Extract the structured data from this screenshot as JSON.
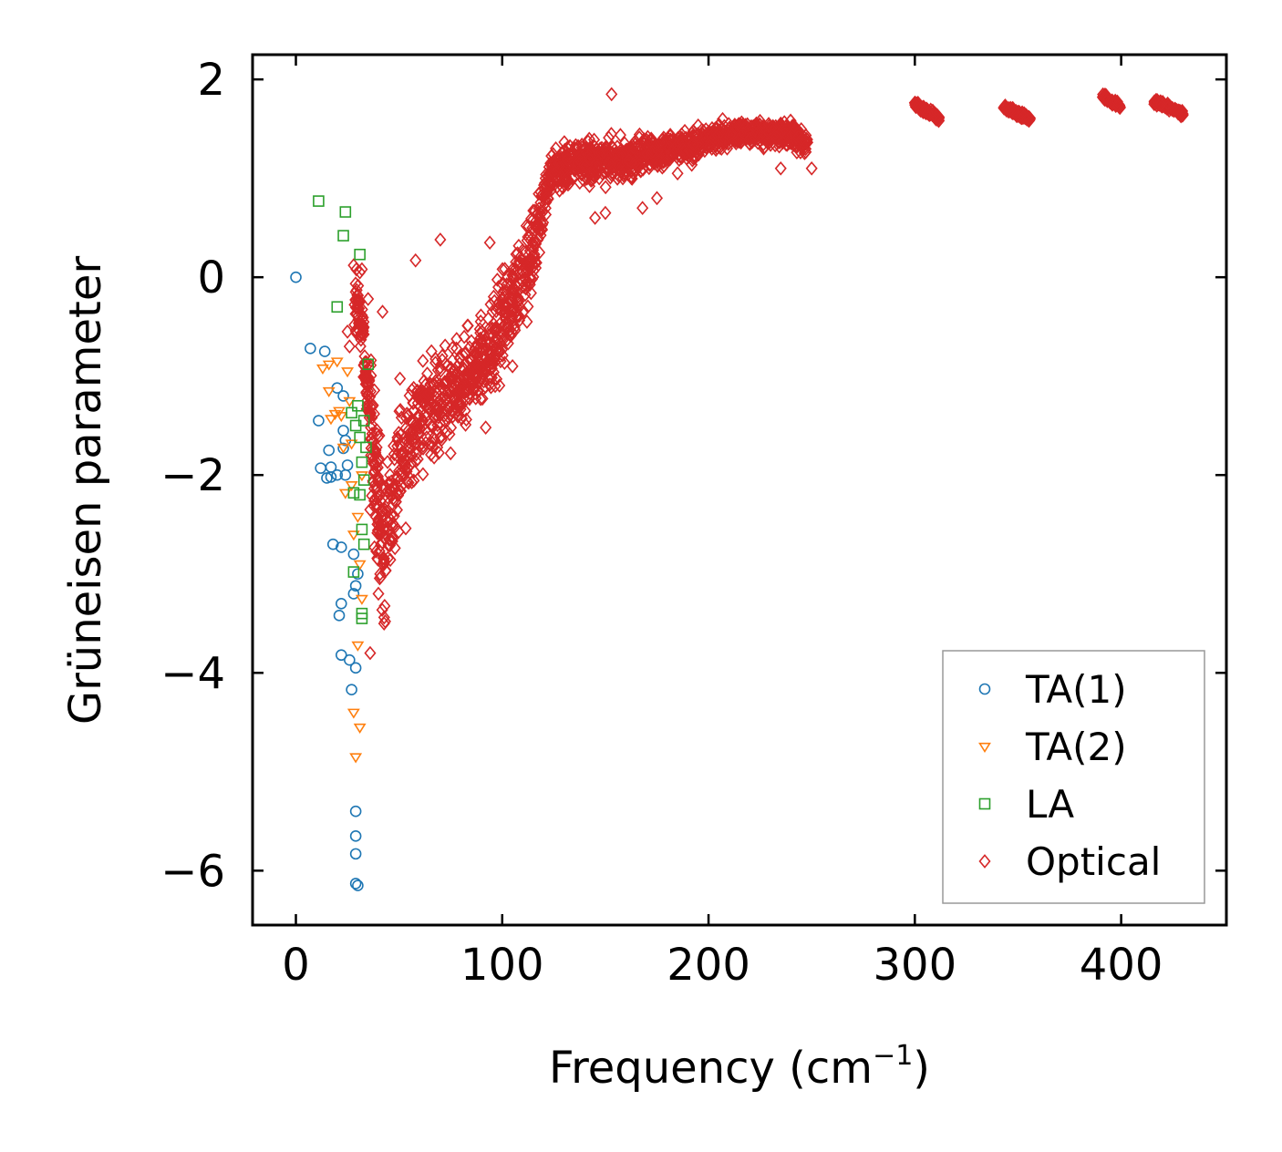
{
  "chart_data": {
    "type": "scatter",
    "title": "",
    "xlabel_base": "Frequency (cm",
    "xlabel_sup": "−1",
    "xlabel_end": ")",
    "ylabel": "Grüneisen parameter",
    "xlim": [
      -21,
      451
    ],
    "ylim": [
      -6.55,
      2.25
    ],
    "x_ticks": [
      0,
      100,
      200,
      300,
      400
    ],
    "x_tick_labels": [
      "0",
      "100",
      "200",
      "300",
      "400"
    ],
    "y_ticks": [
      2,
      0,
      -2,
      -4,
      -6
    ],
    "y_tick_labels": [
      "2",
      "0",
      "−2",
      "−4",
      "−6"
    ],
    "grid": false,
    "legend_position": "lower-right",
    "series": [
      {
        "name": "TA(1)",
        "marker": "circle",
        "color": "#1f77b4",
        "points": [
          [
            0,
            0
          ],
          [
            7,
            -0.72
          ],
          [
            11,
            -1.45
          ],
          [
            12,
            -1.93
          ],
          [
            14,
            -0.75
          ],
          [
            15,
            -2.03
          ],
          [
            16,
            -1.75
          ],
          [
            17,
            -2.02
          ],
          [
            17,
            -1.92
          ],
          [
            18,
            -2.7
          ],
          [
            20,
            -1.12
          ],
          [
            20,
            -2.0
          ],
          [
            21,
            -3.42
          ],
          [
            22,
            -3.3
          ],
          [
            22,
            -2.73
          ],
          [
            22,
            -3.82
          ],
          [
            23,
            -1.2
          ],
          [
            23,
            -1.55
          ],
          [
            23,
            -1.73
          ],
          [
            24,
            -2.0
          ],
          [
            24,
            -1.65
          ],
          [
            25,
            -1.9
          ],
          [
            26,
            -3.87
          ],
          [
            27,
            -4.17
          ],
          [
            28,
            -3.2
          ],
          [
            28,
            -2.8
          ],
          [
            29,
            -3.12
          ],
          [
            29,
            -3.95
          ],
          [
            30,
            -3.0
          ],
          [
            29,
            -5.4
          ],
          [
            29,
            -5.65
          ],
          [
            29,
            -5.83
          ],
          [
            29,
            -6.13
          ],
          [
            30,
            -6.15
          ]
        ]
      },
      {
        "name": "TA(2)",
        "marker": "triangle-down",
        "color": "#ff7f0e",
        "points": [
          [
            13,
            -0.92
          ],
          [
            16,
            -0.88
          ],
          [
            16,
            -1.15
          ],
          [
            17,
            -1.43
          ],
          [
            19,
            -1.38
          ],
          [
            20,
            -0.85
          ],
          [
            21,
            -1.35
          ],
          [
            22,
            -1.4
          ],
          [
            23,
            -1.72
          ],
          [
            24,
            -2.18
          ],
          [
            25,
            -0.95
          ],
          [
            26,
            -1.25
          ],
          [
            27,
            -1.68
          ],
          [
            27,
            -2.1
          ],
          [
            28,
            -2.6
          ],
          [
            28,
            -4.4
          ],
          [
            29,
            -4.85
          ],
          [
            30,
            -3.72
          ],
          [
            30,
            -2.42
          ],
          [
            31,
            -4.55
          ],
          [
            31,
            -2.9
          ],
          [
            32,
            -3.25
          ],
          [
            32,
            -2.0
          ]
        ]
      },
      {
        "name": "LA",
        "marker": "square",
        "color": "#2ca02c",
        "points": [
          [
            11,
            0.77
          ],
          [
            20,
            -0.3
          ],
          [
            23,
            0.42
          ],
          [
            24,
            0.66
          ],
          [
            27,
            -1.37
          ],
          [
            28,
            -2.18
          ],
          [
            28,
            -2.98
          ],
          [
            29,
            -1.5
          ],
          [
            30,
            -1.3
          ],
          [
            31,
            0.23
          ],
          [
            31,
            -1.62
          ],
          [
            31,
            -2.2
          ],
          [
            32,
            -1.87
          ],
          [
            32,
            -2.55
          ],
          [
            32,
            -3.4
          ],
          [
            32,
            -3.45
          ],
          [
            33,
            -1.45
          ],
          [
            33,
            -2.05
          ],
          [
            33,
            -2.7
          ],
          [
            34,
            -1.72
          ],
          [
            35,
            -0.88
          ]
        ]
      },
      {
        "name": "Optical",
        "marker": "diamond",
        "color": "#d62728",
        "bands": [
          [
            [
              28,
              -0.2,
              0.6
            ],
            [
              32,
              -0.5,
              0.5
            ],
            [
              35,
              -1.2,
              0.45
            ],
            [
              38,
              -1.8,
              1.5
            ],
            [
              40,
              -2.3,
              1.3
            ],
            [
              43,
              -2.8,
              1.1
            ],
            [
              48,
              -2.0,
              1.2
            ],
            [
              55,
              -1.7,
              1.0
            ],
            [
              62,
              -1.3,
              0.9
            ],
            [
              70,
              -1.3,
              0.8
            ],
            [
              80,
              -1.1,
              0.75
            ],
            [
              88,
              -0.9,
              0.7
            ],
            [
              95,
              -0.7,
              0.8
            ],
            [
              100,
              -0.5,
              0.8
            ],
            [
              105,
              -0.2,
              0.75
            ],
            [
              110,
              0.0,
              0.6
            ],
            [
              115,
              0.3,
              0.7
            ],
            [
              120,
              0.8,
              0.55
            ],
            [
              125,
              1.1,
              0.35
            ],
            [
              130,
              1.1,
              0.4
            ],
            [
              140,
              1.2,
              0.35
            ],
            [
              150,
              1.15,
              0.35
            ],
            [
              160,
              1.2,
              0.3
            ],
            [
              170,
              1.25,
              0.3
            ],
            [
              180,
              1.3,
              0.25
            ],
            [
              190,
              1.3,
              0.25
            ],
            [
              200,
              1.4,
              0.2
            ],
            [
              210,
              1.45,
              0.2
            ],
            [
              220,
              1.45,
              0.2
            ],
            [
              230,
              1.45,
              0.2
            ],
            [
              240,
              1.45,
              0.2
            ],
            [
              248,
              1.35,
              0.2
            ]
          ],
          [
            [
              300,
              1.75,
              0.05
            ],
            [
              312,
              1.6,
              0.05
            ]
          ],
          [
            [
              343,
              1.72,
              0.05
            ],
            [
              356,
              1.6,
              0.05
            ]
          ],
          [
            [
              391,
              1.83,
              0.05
            ],
            [
              400,
              1.72,
              0.05
            ]
          ],
          [
            [
              416,
              1.78,
              0.05
            ],
            [
              430,
              1.65,
              0.05
            ]
          ]
        ],
        "scatter": [
          [
            25,
            -0.55
          ],
          [
            26,
            -0.7
          ],
          [
            28,
            0.12
          ],
          [
            31,
            0.05
          ],
          [
            32,
            0.08
          ],
          [
            35,
            -0.22
          ],
          [
            36,
            -2.35
          ],
          [
            36,
            -3.8
          ],
          [
            40,
            -3.2
          ],
          [
            42,
            -0.35
          ],
          [
            45,
            -2.55
          ],
          [
            58,
            0.17
          ],
          [
            66,
            -1.5
          ],
          [
            70,
            0.38
          ],
          [
            72,
            -1.45
          ],
          [
            75,
            -1.78
          ],
          [
            88,
            -1.15
          ],
          [
            92,
            -1.52
          ],
          [
            94,
            0.35
          ],
          [
            105,
            -0.9
          ],
          [
            112,
            -0.45
          ],
          [
            121,
            1.0
          ],
          [
            145,
            0.6
          ],
          [
            150,
            0.65
          ],
          [
            153,
            1.85
          ],
          [
            168,
            0.7
          ],
          [
            175,
            0.8
          ],
          [
            185,
            1.05
          ],
          [
            235,
            1.1
          ],
          [
            250,
            1.1
          ]
        ]
      }
    ]
  }
}
